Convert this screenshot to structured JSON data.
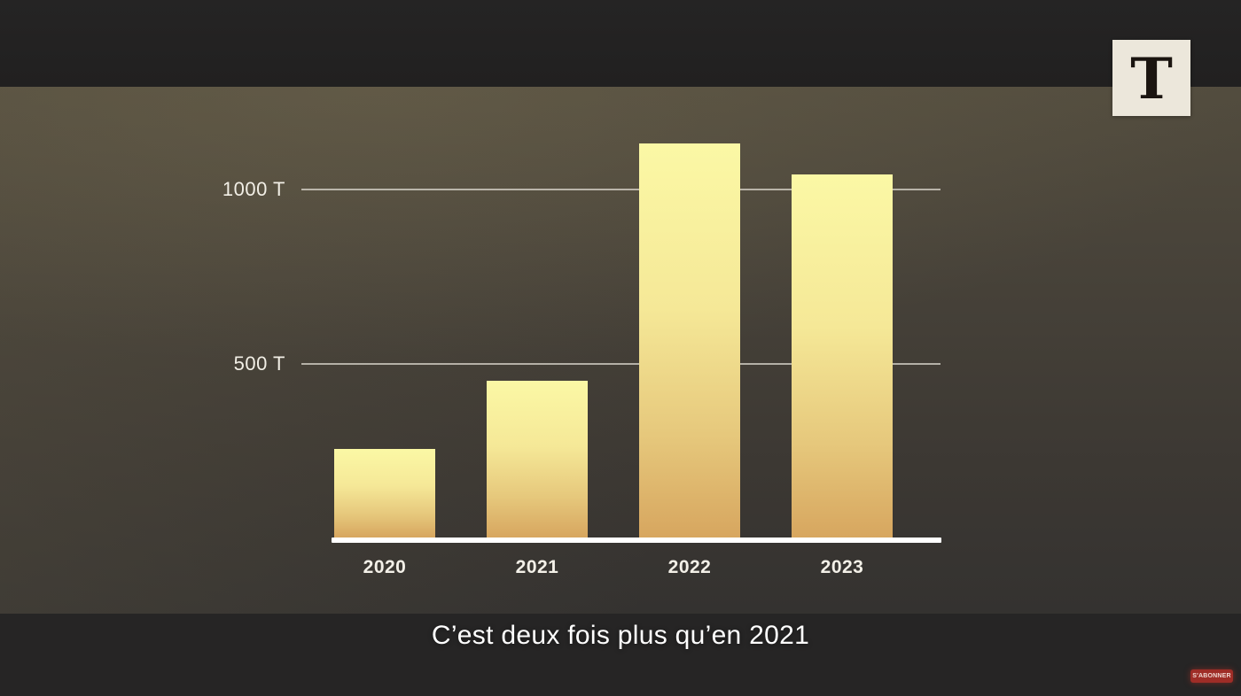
{
  "brand": {
    "logo_letter": "T",
    "logo_background": "#ece7db",
    "logo_letter_color": "#1b1510"
  },
  "subtitle": {
    "text": "C’est deux fois plus qu’en 2021"
  },
  "subscribe_badge": {
    "label": "S'ABONNER",
    "color": "#9e2d27"
  },
  "chart_data": {
    "type": "bar",
    "title": "",
    "xlabel": "",
    "ylabel": "",
    "unit": "T",
    "categories": [
      "2020",
      "2021",
      "2022",
      "2023"
    ],
    "values": [
      255,
      450,
      1130,
      1040
    ],
    "y_ticks": [
      {
        "value": 500,
        "label": "500 T"
      },
      {
        "value": 1000,
        "label": "1000 T"
      }
    ],
    "ylim": [
      0,
      1250
    ],
    "grid": "horizontal gridlines at 500 T and 1000 T, drawn behind bars",
    "legend": "none",
    "bar_color_top": "#fbf8a5",
    "bar_color_bottom": "#d7a65f",
    "axis_color": "#ffffff",
    "gridline_color": "#e0dcd2",
    "tick_label_color": "#f2efe6"
  }
}
